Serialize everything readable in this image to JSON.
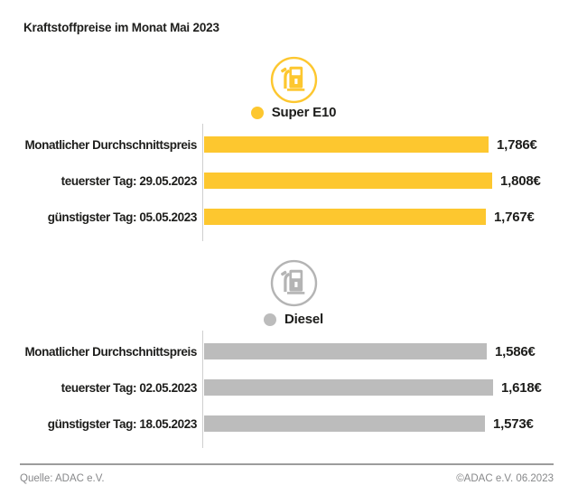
{
  "title": "Kraftstoffpreise im Monat Mai 2023",
  "colors": {
    "super_e10": "#FDC72F",
    "diesel_bar": "#BCBCBC",
    "diesel_icon": "#B4B4B4",
    "axis_line": "#CFCFCF",
    "text": "#1D1D1B",
    "footer_line": "#9C9C9C",
    "footer_text": "#87888A"
  },
  "chart_data": [
    {
      "type": "bar",
      "orientation": "horizontal",
      "series_name": "Super E10",
      "icon": "fuel-pump-icon",
      "color": "#FDC72F",
      "icon_color": "#FDC72F",
      "categories": [
        "Monatlicher Durchschnittspreis",
        "teuerster Tag: 29.05.2023",
        "günstigster Tag: 05.05.2023"
      ],
      "values": [
        1.786,
        1.808,
        1.767
      ],
      "value_labels": [
        "1,786€",
        "1,808€",
        "1,767€"
      ],
      "xlim": [
        0,
        1.87
      ],
      "grid": false,
      "legend_position": "top-center"
    },
    {
      "type": "bar",
      "orientation": "horizontal",
      "series_name": "Diesel",
      "icon": "fuel-pump-icon",
      "color": "#BCBCBC",
      "icon_color": "#B4B4B4",
      "categories": [
        "Monatlicher Durchschnittspreis",
        "teuerster Tag: 02.05.2023",
        "günstigster Tag: 18.05.2023"
      ],
      "values": [
        1.586,
        1.618,
        1.573
      ],
      "value_labels": [
        "1,586€",
        "1,618€",
        "1,573€"
      ],
      "xlim": [
        0,
        1.67
      ],
      "grid": false,
      "legend_position": "top-center"
    }
  ],
  "footer": {
    "source": "Quelle: ADAC e.V.",
    "copyright": "©ADAC e.V. 06.2023"
  }
}
